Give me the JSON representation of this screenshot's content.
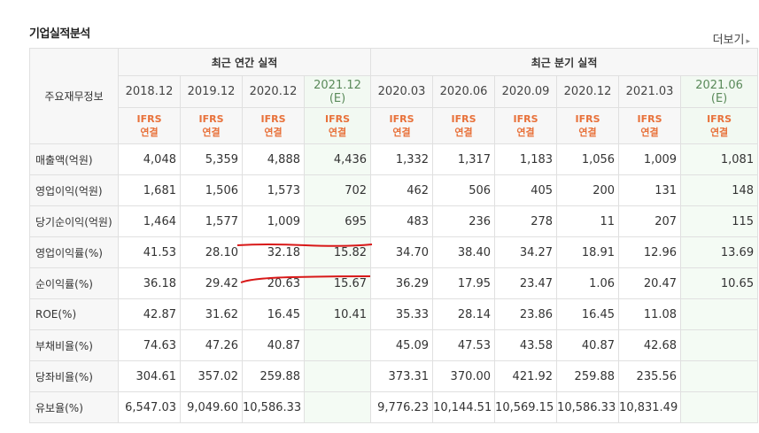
{
  "section_title": "기업실적분석",
  "more_link": "더보기",
  "header": {
    "main_label": "주요재무정보",
    "annual_group": "최근 연간 실적",
    "quarter_group": "최근 분기 실적",
    "annual_dates": [
      "2018.12",
      "2019.12",
      "2020.12",
      "2021.12"
    ],
    "annual_estimate_mark": "(E)",
    "quarter_dates": [
      "2020.03",
      "2020.06",
      "2020.09",
      "2020.12",
      "2021.03",
      "2021.06"
    ],
    "quarter_estimate_mark": "(E)",
    "ifrs_top": "IFRS",
    "ifrs_bottom": "연결"
  },
  "rows": [
    {
      "label": "매출액(억원)",
      "values": [
        "4,048",
        "5,359",
        "4,888",
        "4,436",
        "1,332",
        "1,317",
        "1,183",
        "1,056",
        "1,009",
        "1,081"
      ]
    },
    {
      "label": "영업이익(억원)",
      "values": [
        "1,681",
        "1,506",
        "1,573",
        "702",
        "462",
        "506",
        "405",
        "200",
        "131",
        "148"
      ]
    },
    {
      "label": "당기순이익(억원)",
      "values": [
        "1,464",
        "1,577",
        "1,009",
        "695",
        "483",
        "236",
        "278",
        "11",
        "207",
        "115"
      ]
    },
    {
      "label": "영업이익률(%)",
      "values": [
        "41.53",
        "28.10",
        "32.18",
        "15.82",
        "34.70",
        "38.40",
        "34.27",
        "18.91",
        "12.96",
        "13.69"
      ]
    },
    {
      "label": "순이익률(%)",
      "values": [
        "36.18",
        "29.42",
        "20.63",
        "15.67",
        "36.29",
        "17.95",
        "23.47",
        "1.06",
        "20.47",
        "10.65"
      ]
    },
    {
      "label": "ROE(%)",
      "values": [
        "42.87",
        "31.62",
        "16.45",
        "10.41",
        "35.33",
        "28.14",
        "23.86",
        "16.45",
        "11.08",
        ""
      ]
    },
    {
      "label": "부채비율(%)",
      "values": [
        "74.63",
        "47.26",
        "40.87",
        "",
        "45.09",
        "47.53",
        "43.58",
        "40.87",
        "42.68",
        ""
      ]
    },
    {
      "label": "당좌비율(%)",
      "values": [
        "304.61",
        "357.02",
        "259.88",
        "",
        "373.31",
        "370.00",
        "421.92",
        "259.88",
        "235.56",
        ""
      ]
    },
    {
      "label": "유보율(%)",
      "values": [
        "6,547.03",
        "9,049.60",
        "10,586.33",
        "",
        "9,776.23",
        "10,144.51",
        "10,569.15",
        "10,586.33",
        "10,831.49",
        ""
      ]
    }
  ],
  "accent_colors": {
    "ifrs": "#e8713a",
    "estimate_bg": "#f4fbf4",
    "annotation": "#d81818"
  }
}
